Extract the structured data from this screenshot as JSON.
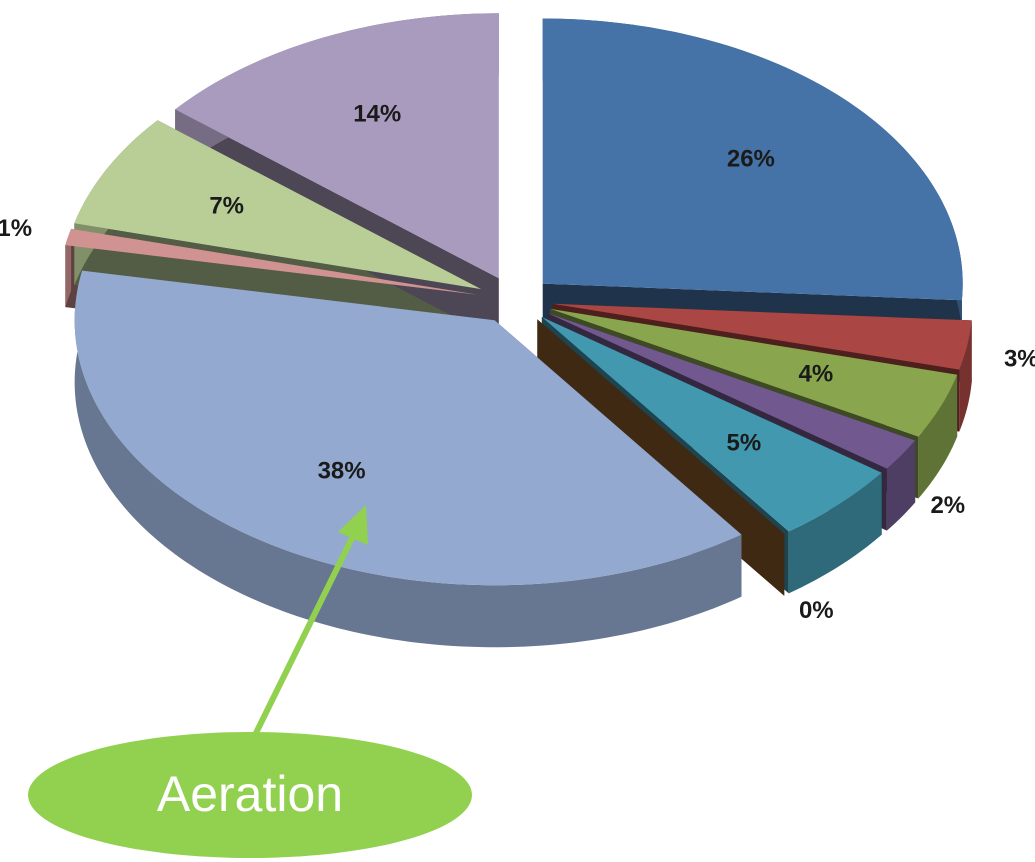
{
  "chart_data": {
    "type": "pie",
    "values": [
      26,
      3,
      4,
      2,
      5,
      0,
      38,
      1,
      7,
      14
    ],
    "value_labels": [
      "26%",
      "3%",
      "4%",
      "2%",
      "5%",
      "0%",
      "38%",
      "1%",
      "7%",
      "14%"
    ],
    "colors": [
      "#4572a7",
      "#aa4643",
      "#89a54e",
      "#71588f",
      "#4198af",
      "#8b5a2b",
      "#93a9cf",
      "#d19392",
      "#b9cd96",
      "#a99bbd"
    ],
    "annotation": "Aeration"
  }
}
